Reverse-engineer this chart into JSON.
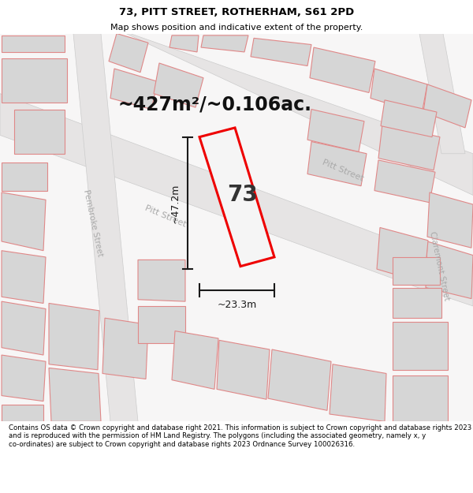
{
  "title": "73, PITT STREET, ROTHERHAM, S61 2PD",
  "subtitle": "Map shows position and indicative extent of the property.",
  "area_text": "~427m²/~0.106ac.",
  "plot_number": "73",
  "dim_vertical": "~47.2m",
  "dim_horizontal": "~23.3m",
  "background_color": "#ffffff",
  "map_bg": "#f7f6f6",
  "building_fill": "#d6d6d6",
  "building_stroke": "#e08888",
  "road_fill": "#e8e6e6",
  "highlight_fill": "#f5f5f5",
  "highlight_stroke": "#ee0000",
  "footer_text": "Contains OS data © Crown copyright and database right 2021. This information is subject to Crown copyright and database rights 2023 and is reproduced with the permission of HM Land Registry. The polygons (including the associated geometry, namely x, y co-ordinates) are subject to Crown copyright and database rights 2023 Ordnance Survey 100026316.",
  "street_label_pitt_upper": "Pitt Street",
  "street_label_pitt_lower": "Pitt Street",
  "street_label_pembroke": "Pembroke Street",
  "street_label_claremont": "Claremont Street"
}
